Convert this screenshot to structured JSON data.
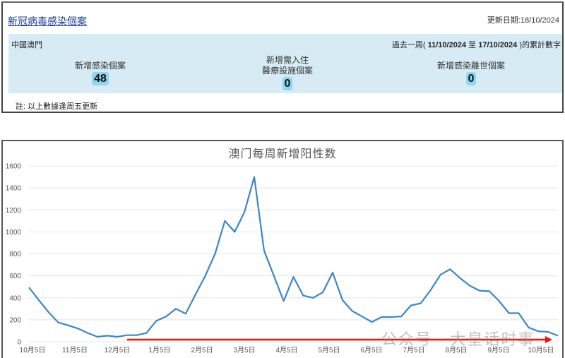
{
  "panel": {
    "title": "新冠病毒感染個案",
    "update_date": "更新日期:18/10/2024",
    "region": "中國澳門",
    "period_prefix": "過去一周(",
    "period_start": "11/10/2024",
    "period_mid": "至",
    "period_end": "17/10/2024",
    "period_suffix": ")的累計數字",
    "stats": [
      {
        "label": "新增感染個案",
        "value": "48"
      },
      {
        "label_line1": "新增需入住",
        "label_line2": "醫療設施個案",
        "value": "0"
      },
      {
        "label": "新增感染離世個案",
        "value": "0"
      }
    ],
    "note": "註: 以上數據逢周五更新"
  },
  "watermark": "公众号 · 大皇话时事",
  "colors": {
    "line": "#3a86cc",
    "arrow": "#ee1111",
    "panel_bg": "#d6ebf4",
    "badge_bg": "#8fd6f2",
    "title_link": "#1a3f9a",
    "grid": "#e4e4e4"
  },
  "chart_data": {
    "type": "line",
    "title": "澳门每周新增阳性数",
    "xlabel": "",
    "ylabel": "",
    "ylim": [
      0,
      1600
    ],
    "yticks": [
      0,
      200,
      400,
      600,
      800,
      1000,
      1200,
      1400,
      1600
    ],
    "grid": true,
    "legend": "none",
    "x_tick_labels": [
      "10月5日",
      "11月5日",
      "12月5日",
      "1月5日",
      "2月5日",
      "3月5日",
      "4月5日",
      "5月5日",
      "6月5日",
      "7月5日",
      "8月5日",
      "9月5日",
      "10月5日"
    ],
    "series": [
      {
        "name": "澳门每周新增阳性数",
        "values": [
          495,
          380,
          270,
          175,
          150,
          120,
          80,
          45,
          55,
          45,
          60,
          60,
          80,
          190,
          230,
          300,
          255,
          430,
          600,
          800,
          1100,
          1000,
          1180,
          1500,
          830,
          600,
          370,
          590,
          420,
          400,
          450,
          630,
          380,
          280,
          230,
          180,
          225,
          225,
          230,
          330,
          350,
          470,
          610,
          660,
          580,
          510,
          465,
          460,
          370,
          260,
          260,
          130,
          95,
          90,
          55
        ]
      }
    ],
    "annotations": [
      {
        "type": "arrow",
        "color": "#ee1111",
        "from": "12月5日",
        "to": "10月5日",
        "y": 20,
        "note": "red trend arrow near baseline"
      }
    ]
  }
}
